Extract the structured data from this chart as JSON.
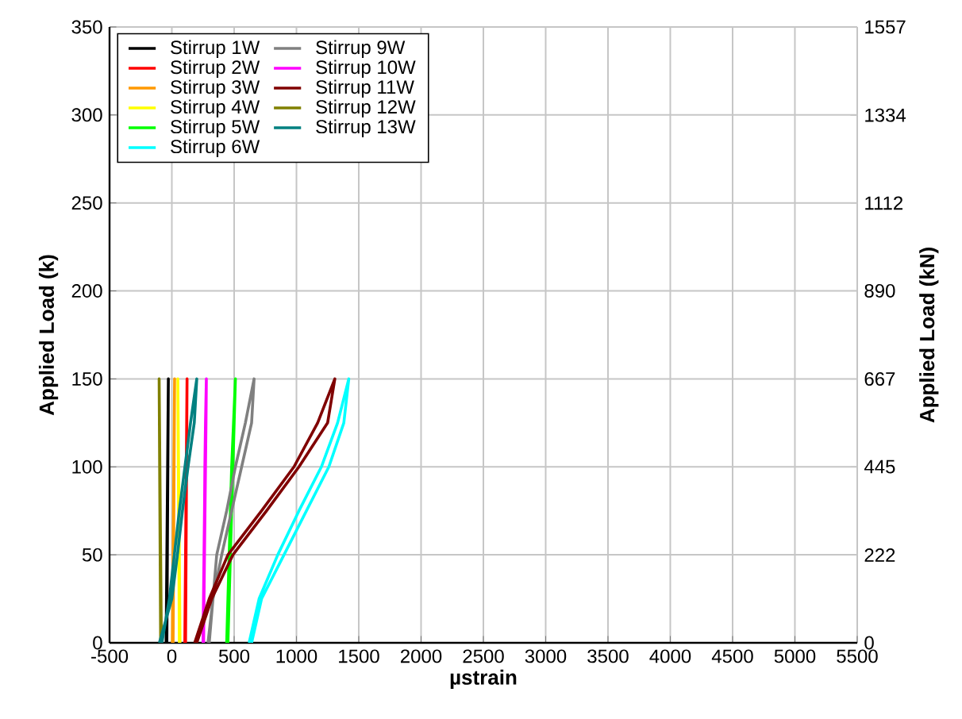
{
  "chart_data": {
    "type": "line",
    "xlabel": "µstrain",
    "ylabel": "Applied Load (k)",
    "y2label": "Applied Load (kN)",
    "xlim": [
      -500,
      5500
    ],
    "xticks": [
      -500,
      0,
      500,
      1000,
      1500,
      2000,
      2500,
      3000,
      3500,
      4000,
      4500,
      5000,
      5500
    ],
    "ylim": [
      0,
      350
    ],
    "yticks": [
      0,
      50,
      100,
      150,
      200,
      250,
      300,
      350
    ],
    "y2lim": [
      0,
      1557
    ],
    "y2ticks": [
      0,
      222,
      445,
      667,
      890,
      1112,
      1334,
      1557
    ],
    "grid": true,
    "legend": "top left",
    "marker": "none",
    "line_style": "solid",
    "series": [
      {
        "name": "Stirrup 1W",
        "color": "#000000",
        "x": [
          -40,
          -38,
          -36,
          -34,
          -32,
          -30,
          -28,
          -31,
          -34,
          -37,
          -40,
          -43,
          -46
        ],
        "values": [
          0,
          25,
          50,
          75,
          100,
          125,
          150,
          125,
          100,
          75,
          50,
          25,
          0
        ]
      },
      {
        "name": "Stirrup 2W",
        "color": "#ff0000",
        "x": [
          110,
          112,
          114,
          116,
          118,
          120,
          122,
          119,
          116,
          113,
          110,
          107,
          104
        ],
        "values": [
          0,
          25,
          50,
          75,
          100,
          125,
          150,
          125,
          100,
          75,
          50,
          25,
          0
        ]
      },
      {
        "name": "Stirrup 3W",
        "color": "#ff9900",
        "x": [
          10,
          12,
          14,
          16,
          18,
          20,
          22,
          19,
          16,
          13,
          10,
          7,
          4
        ],
        "values": [
          0,
          25,
          50,
          75,
          100,
          125,
          150,
          125,
          100,
          75,
          50,
          25,
          0
        ]
      },
      {
        "name": "Stirrup 4W",
        "color": "#ffff00",
        "x": [
          60,
          58,
          56,
          54,
          52,
          50,
          48,
          51,
          54,
          57,
          60,
          63,
          66
        ],
        "values": [
          0,
          25,
          50,
          75,
          100,
          125,
          150,
          125,
          100,
          75,
          50,
          25,
          0
        ]
      },
      {
        "name": "Stirrup 5W",
        "color": "#00ff00",
        "x": [
          450,
          460,
          470,
          480,
          490,
          500,
          510,
          495,
          480,
          470,
          460,
          450,
          440
        ],
        "values": [
          0,
          25,
          50,
          75,
          100,
          125,
          150,
          125,
          100,
          75,
          50,
          25,
          0
        ]
      },
      {
        "name": "Stirrup 6W",
        "color": "#00ffff",
        "x": [
          620,
          700,
          850,
          1020,
          1200,
          1330,
          1420,
          1380,
          1260,
          1080,
          900,
          720,
          640
        ],
        "values": [
          0,
          25,
          50,
          75,
          100,
          125,
          150,
          125,
          100,
          75,
          50,
          25,
          0
        ]
      },
      {
        "name": "Stirrup 9W",
        "color": "#808080",
        "x": [
          300,
          330,
          360,
          440,
          510,
          590,
          660,
          640,
          560,
          480,
          400,
          330,
          290
        ],
        "values": [
          0,
          25,
          50,
          75,
          100,
          125,
          150,
          125,
          100,
          75,
          50,
          25,
          0
        ]
      },
      {
        "name": "Stirrup 10W",
        "color": "#ff00ff",
        "x": [
          255,
          258,
          262,
          266,
          270,
          274,
          277,
          270,
          265,
          262,
          258,
          254,
          250
        ],
        "values": [
          0,
          25,
          50,
          75,
          100,
          125,
          150,
          125,
          100,
          75,
          50,
          25,
          0
        ]
      },
      {
        "name": "Stirrup 11W",
        "color": "#800000",
        "x": [
          183,
          300,
          450,
          720,
          980,
          1170,
          1308,
          1250,
          1020,
          760,
          490,
          320,
          200
        ],
        "values": [
          0,
          25,
          50,
          75,
          100,
          125,
          150,
          125,
          100,
          75,
          50,
          25,
          0
        ]
      },
      {
        "name": "Stirrup 12W",
        "color": "#808000",
        "x": [
          -90,
          -92,
          -94,
          -96,
          -98,
          -100,
          -102,
          -99,
          -96,
          -93,
          -90,
          -87,
          -84
        ],
        "values": [
          0,
          25,
          50,
          75,
          100,
          125,
          150,
          125,
          100,
          75,
          50,
          25,
          0
        ]
      },
      {
        "name": "Stirrup 13W",
        "color": "#008080",
        "x": [
          -80,
          -20,
          20,
          60,
          105,
          150,
          200,
          180,
          130,
          85,
          45,
          0,
          -100
        ],
        "values": [
          0,
          25,
          50,
          75,
          100,
          125,
          150,
          125,
          100,
          75,
          50,
          25,
          0
        ]
      }
    ]
  }
}
